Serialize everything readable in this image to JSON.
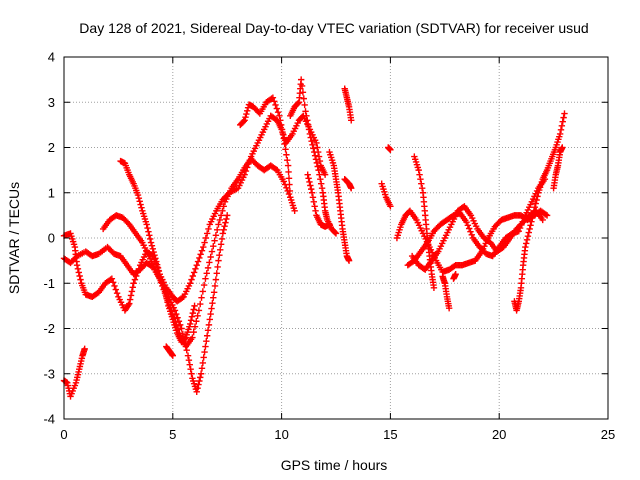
{
  "chart_data": {
    "type": "scatter",
    "title": "Day 128 of 2021, Sidereal Day-to-day VTEC variation (SDTVAR) for receiver usud",
    "xlabel": "GPS time / hours",
    "ylabel": "SDTVAR / TECUs",
    "xlim": [
      0,
      25
    ],
    "ylim": [
      -4,
      4
    ],
    "xticks": [
      0,
      5,
      10,
      15,
      20,
      25
    ],
    "yticks": [
      -4,
      -3,
      -2,
      -1,
      0,
      1,
      2,
      3,
      4
    ],
    "grid": true,
    "marker": "+",
    "color": "#ff0000",
    "series": [
      {
        "name": "trace-1",
        "points": [
          [
            0.0,
            0.05
          ],
          [
            0.3,
            0.1
          ],
          [
            0.5,
            -0.2
          ],
          [
            0.6,
            -0.6
          ],
          [
            0.8,
            -1.0
          ],
          [
            1.0,
            -1.25
          ],
          [
            1.3,
            -1.3
          ],
          [
            1.6,
            -1.2
          ],
          [
            1.9,
            -1.0
          ],
          [
            2.2,
            -0.9
          ],
          [
            2.5,
            -1.3
          ],
          [
            2.8,
            -1.6
          ],
          [
            3.0,
            -1.45
          ],
          [
            3.2,
            -1.0
          ],
          [
            3.5,
            -0.6
          ],
          [
            3.8,
            -0.3
          ],
          [
            4.1,
            -0.4
          ],
          [
            4.4,
            -0.8
          ],
          [
            4.7,
            -1.1
          ],
          [
            5.0,
            -1.3
          ],
          [
            5.2,
            -1.4
          ],
          [
            5.5,
            -1.3
          ],
          [
            5.8,
            -1.0
          ],
          [
            6.1,
            -0.6
          ],
          [
            6.4,
            -0.2
          ],
          [
            6.7,
            0.3
          ],
          [
            7.0,
            0.6
          ],
          [
            7.3,
            0.85
          ],
          [
            7.6,
            1.0
          ],
          [
            8.0,
            1.1
          ],
          [
            8.3,
            1.4
          ],
          [
            8.6,
            1.8
          ],
          [
            8.9,
            2.1
          ],
          [
            9.2,
            2.4
          ],
          [
            9.5,
            2.7
          ],
          [
            9.8,
            2.6
          ],
          [
            10.0,
            2.4
          ],
          [
            10.2,
            2.1
          ],
          [
            10.5,
            2.3
          ],
          [
            10.8,
            2.6
          ],
          [
            11.0,
            2.7
          ],
          [
            11.3,
            2.4
          ],
          [
            11.6,
            2.1
          ],
          [
            11.8,
            1.6
          ],
          [
            12.0,
            1.4
          ]
        ]
      },
      {
        "name": "trace-2",
        "points": [
          [
            0.0,
            -0.45
          ],
          [
            0.3,
            -0.55
          ],
          [
            0.6,
            -0.4
          ],
          [
            1.0,
            -0.3
          ],
          [
            1.3,
            -0.4
          ],
          [
            1.6,
            -0.35
          ],
          [
            2.0,
            -0.2
          ],
          [
            2.3,
            -0.35
          ],
          [
            2.6,
            -0.4
          ],
          [
            2.9,
            -0.6
          ],
          [
            3.2,
            -0.8
          ],
          [
            3.5,
            -0.7
          ],
          [
            3.8,
            -0.55
          ],
          [
            4.1,
            -0.65
          ],
          [
            4.4,
            -0.9
          ],
          [
            4.7,
            -1.3
          ],
          [
            5.0,
            -1.7
          ],
          [
            5.3,
            -2.1
          ],
          [
            5.6,
            -2.4
          ],
          [
            5.9,
            -2.2
          ],
          [
            6.2,
            -1.6
          ],
          [
            6.5,
            -0.9
          ],
          [
            6.8,
            -0.3
          ],
          [
            7.1,
            0.3
          ],
          [
            7.4,
            0.8
          ],
          [
            7.7,
            1.1
          ],
          [
            8.0,
            1.3
          ],
          [
            8.3,
            1.55
          ],
          [
            8.6,
            1.75
          ],
          [
            8.9,
            1.6
          ],
          [
            9.2,
            1.5
          ],
          [
            9.5,
            1.6
          ],
          [
            9.8,
            1.5
          ],
          [
            10.1,
            1.25
          ],
          [
            10.4,
            0.9
          ],
          [
            10.6,
            0.6
          ]
        ]
      },
      {
        "name": "trace-3",
        "points": [
          [
            1.8,
            0.2
          ],
          [
            2.1,
            0.4
          ],
          [
            2.4,
            0.5
          ],
          [
            2.7,
            0.45
          ],
          [
            3.0,
            0.3
          ],
          [
            3.3,
            0.1
          ],
          [
            3.6,
            -0.1
          ],
          [
            3.9,
            -0.4
          ],
          [
            4.2,
            -0.7
          ],
          [
            4.5,
            -1.0
          ],
          [
            4.8,
            -1.3
          ],
          [
            5.1,
            -1.6
          ],
          [
            5.4,
            -2.0
          ],
          [
            5.7,
            -2.6
          ],
          [
            5.9,
            -3.1
          ],
          [
            6.1,
            -3.4
          ],
          [
            6.3,
            -3.0
          ],
          [
            6.5,
            -2.4
          ],
          [
            6.7,
            -1.8
          ],
          [
            6.9,
            -1.2
          ],
          [
            7.1,
            -0.5
          ],
          [
            7.3,
            0.1
          ],
          [
            7.5,
            0.5
          ]
        ]
      },
      {
        "name": "trace-4",
        "points": [
          [
            2.6,
            1.7
          ],
          [
            2.8,
            1.65
          ],
          [
            3.0,
            1.4
          ],
          [
            3.2,
            1.2
          ],
          [
            3.4,
            0.95
          ],
          [
            3.6,
            0.6
          ],
          [
            3.8,
            0.3
          ],
          [
            4.0,
            -0.1
          ],
          [
            4.2,
            -0.45
          ],
          [
            4.4,
            -0.8
          ],
          [
            4.6,
            -1.1
          ],
          [
            4.8,
            -1.5
          ],
          [
            5.0,
            -1.8
          ],
          [
            5.2,
            -2.1
          ],
          [
            5.4,
            -2.3
          ],
          [
            5.6,
            -2.2
          ],
          [
            5.8,
            -1.9
          ],
          [
            6.0,
            -1.5
          ]
        ]
      },
      {
        "name": "trace-5",
        "points": [
          [
            0.0,
            -3.15
          ],
          [
            0.15,
            -3.2
          ],
          [
            0.3,
            -3.5
          ],
          [
            0.55,
            -3.2
          ],
          [
            0.7,
            -2.9
          ],
          [
            0.85,
            -2.6
          ],
          [
            0.95,
            -2.45
          ]
        ]
      },
      {
        "name": "trace-6",
        "points": [
          [
            4.7,
            -2.4
          ],
          [
            4.85,
            -2.5
          ],
          [
            5.0,
            -2.6
          ]
        ]
      },
      {
        "name": "trace-7",
        "points": [
          [
            8.1,
            2.5
          ],
          [
            8.3,
            2.6
          ],
          [
            8.5,
            2.95
          ],
          [
            8.7,
            2.9
          ],
          [
            9.0,
            2.75
          ],
          [
            9.3,
            3.0
          ],
          [
            9.6,
            3.1
          ],
          [
            9.9,
            2.7
          ],
          [
            10.1,
            2.2
          ],
          [
            10.3,
            1.6
          ],
          [
            10.4,
            0.9
          ]
        ]
      },
      {
        "name": "trace-8",
        "points": [
          [
            10.4,
            2.7
          ],
          [
            10.6,
            2.9
          ],
          [
            10.8,
            3.0
          ],
          [
            10.9,
            3.5
          ],
          [
            11.1,
            2.8
          ],
          [
            11.3,
            2.3
          ],
          [
            11.5,
            1.9
          ],
          [
            11.7,
            1.5
          ],
          [
            11.9,
            1.0
          ],
          [
            12.0,
            0.6
          ],
          [
            12.1,
            0.4
          ],
          [
            12.3,
            0.2
          ],
          [
            12.5,
            0.1
          ]
        ]
      },
      {
        "name": "trace-9",
        "points": [
          [
            11.2,
            1.4
          ],
          [
            11.4,
            1.0
          ],
          [
            11.6,
            0.5
          ],
          [
            11.8,
            0.3
          ],
          [
            12.0,
            0.25
          ],
          [
            12.2,
            0.3
          ]
        ]
      },
      {
        "name": "trace-10",
        "points": [
          [
            12.2,
            1.9
          ],
          [
            12.4,
            1.6
          ],
          [
            12.5,
            1.3
          ],
          [
            12.6,
            1.0
          ],
          [
            12.7,
            0.6
          ],
          [
            12.8,
            0.2
          ],
          [
            12.9,
            -0.1
          ],
          [
            13.0,
            -0.4
          ],
          [
            13.1,
            -0.5
          ]
        ]
      },
      {
        "name": "trace-11",
        "points": [
          [
            12.9,
            3.3
          ],
          [
            13.0,
            3.1
          ],
          [
            13.1,
            2.9
          ],
          [
            13.2,
            2.6
          ]
        ]
      },
      {
        "name": "trace-12",
        "points": [
          [
            12.9,
            1.3
          ],
          [
            13.1,
            1.2
          ],
          [
            13.2,
            1.1
          ]
        ]
      },
      {
        "name": "trace-13",
        "points": [
          [
            14.6,
            1.2
          ],
          [
            14.8,
            0.9
          ],
          [
            15.0,
            0.7
          ]
        ]
      },
      {
        "name": "trace-14",
        "points": [
          [
            14.9,
            2.0
          ],
          [
            15.0,
            1.95
          ]
        ]
      },
      {
        "name": "trace-15",
        "points": [
          [
            15.3,
            0.0
          ],
          [
            15.5,
            0.3
          ],
          [
            15.7,
            0.5
          ],
          [
            15.9,
            0.6
          ],
          [
            16.2,
            0.4
          ],
          [
            16.5,
            0.1
          ],
          [
            16.8,
            -0.2
          ],
          [
            17.1,
            -0.5
          ],
          [
            17.4,
            -0.75
          ],
          [
            17.7,
            -0.7
          ],
          [
            18.0,
            -0.6
          ],
          [
            18.3,
            -0.6
          ],
          [
            18.6,
            -0.55
          ],
          [
            18.9,
            -0.5
          ],
          [
            19.2,
            -0.3
          ],
          [
            19.5,
            0.0
          ],
          [
            19.8,
            0.25
          ],
          [
            20.1,
            0.4
          ],
          [
            20.4,
            0.45
          ],
          [
            20.7,
            0.5
          ],
          [
            21.0,
            0.5
          ],
          [
            21.3,
            0.4
          ],
          [
            21.6,
            0.5
          ],
          [
            21.9,
            0.6
          ],
          [
            22.2,
            0.5
          ]
        ]
      },
      {
        "name": "trace-16",
        "points": [
          [
            15.8,
            -0.6
          ],
          [
            16.1,
            -0.5
          ],
          [
            16.4,
            -0.3
          ],
          [
            16.7,
            -0.1
          ],
          [
            17.0,
            0.15
          ],
          [
            17.3,
            0.3
          ],
          [
            17.6,
            0.4
          ],
          [
            17.9,
            0.5
          ],
          [
            18.2,
            0.55
          ],
          [
            18.5,
            0.35
          ],
          [
            18.8,
            0.0
          ],
          [
            19.1,
            -0.2
          ],
          [
            19.4,
            -0.35
          ],
          [
            19.7,
            -0.4
          ],
          [
            20.0,
            -0.2
          ],
          [
            20.3,
            0.0
          ],
          [
            20.6,
            0.1
          ],
          [
            20.9,
            0.15
          ],
          [
            21.2,
            0.5
          ],
          [
            21.5,
            0.8
          ],
          [
            21.8,
            1.1
          ],
          [
            22.1,
            1.3
          ]
        ]
      },
      {
        "name": "trace-17",
        "points": [
          [
            16.0,
            -0.4
          ],
          [
            16.3,
            -0.6
          ],
          [
            16.6,
            -0.7
          ],
          [
            16.9,
            -0.5
          ],
          [
            17.2,
            -0.3
          ],
          [
            17.5,
            0.0
          ],
          [
            17.8,
            0.3
          ],
          [
            18.1,
            0.6
          ],
          [
            18.4,
            0.7
          ],
          [
            18.7,
            0.5
          ],
          [
            19.0,
            0.2
          ],
          [
            19.3,
            0.0
          ],
          [
            19.6,
            -0.1
          ],
          [
            19.9,
            -0.3
          ],
          [
            20.2,
            -0.2
          ],
          [
            20.5,
            0.0
          ],
          [
            20.8,
            0.2
          ],
          [
            21.1,
            0.35
          ],
          [
            21.4,
            0.5
          ],
          [
            21.7,
            0.6
          ],
          [
            22.0,
            0.4
          ]
        ]
      },
      {
        "name": "trace-18",
        "points": [
          [
            16.1,
            1.8
          ],
          [
            16.3,
            1.5
          ],
          [
            16.5,
            1.0
          ],
          [
            16.6,
            0.5
          ],
          [
            16.7,
            0.0
          ],
          [
            16.8,
            -0.4
          ],
          [
            16.9,
            -0.8
          ],
          [
            17.0,
            -1.1
          ]
        ]
      },
      {
        "name": "trace-19",
        "points": [
          [
            17.9,
            -0.9
          ],
          [
            18.0,
            -0.8
          ]
        ]
      },
      {
        "name": "trace-20",
        "points": [
          [
            17.4,
            -0.85
          ],
          [
            17.5,
            -1.0
          ],
          [
            17.6,
            -1.3
          ],
          [
            17.7,
            -1.55
          ]
        ]
      },
      {
        "name": "trace-21",
        "points": [
          [
            20.7,
            -1.4
          ],
          [
            20.8,
            -1.6
          ],
          [
            20.9,
            -1.4
          ],
          [
            21.0,
            -1.1
          ],
          [
            21.1,
            -0.6
          ],
          [
            21.2,
            -0.2
          ],
          [
            21.4,
            0.2
          ],
          [
            21.6,
            0.6
          ],
          [
            21.8,
            1.0
          ],
          [
            22.0,
            1.3
          ],
          [
            22.2,
            1.5
          ],
          [
            22.4,
            1.75
          ],
          [
            22.6,
            2.0
          ],
          [
            22.8,
            2.3
          ],
          [
            23.0,
            2.75
          ]
        ]
      },
      {
        "name": "trace-22",
        "points": [
          [
            22.5,
            1.1
          ],
          [
            22.6,
            1.4
          ],
          [
            22.7,
            1.6
          ],
          [
            22.8,
            1.9
          ],
          [
            22.9,
            2.0
          ]
        ]
      }
    ]
  }
}
